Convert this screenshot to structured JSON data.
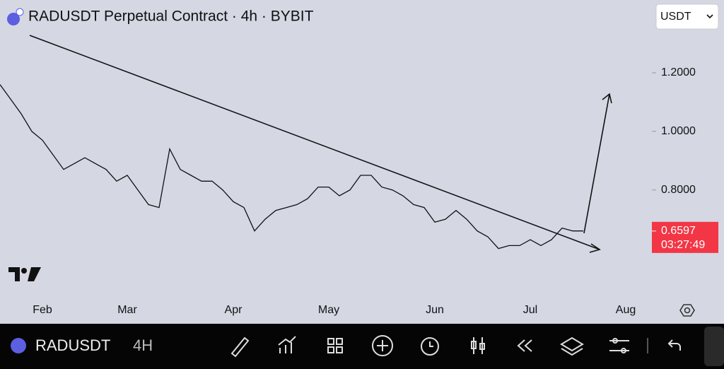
{
  "chart_data": {
    "type": "line",
    "title": "RADUSDT Perpetual Contract · 4h · BYBIT",
    "currency": "USDT",
    "categories": [
      null,
      null,
      null,
      null,
      "Feb",
      null,
      null,
      null,
      null,
      null,
      null,
      null,
      "Mar",
      null,
      null,
      null,
      null,
      null,
      null,
      null,
      null,
      null,
      "Apr",
      null,
      null,
      null,
      null,
      null,
      null,
      null,
      null,
      "May",
      null,
      null,
      null,
      null,
      null,
      null,
      null,
      null,
      null,
      "Jun",
      null,
      null,
      null,
      null,
      null,
      null,
      null,
      null,
      "Jul",
      null,
      null,
      null,
      null,
      null,
      null,
      null,
      null,
      "Aug",
      null
    ],
    "series": [
      {
        "name": "RADUSDT",
        "color": "#111111",
        "values": [
          1.16,
          1.11,
          1.06,
          1.0,
          0.97,
          0.92,
          0.87,
          0.89,
          0.91,
          0.89,
          0.87,
          0.83,
          0.85,
          0.8,
          0.75,
          0.74,
          0.94,
          0.87,
          0.85,
          0.83,
          0.83,
          0.8,
          0.76,
          0.74,
          0.66,
          0.7,
          0.73,
          0.74,
          0.75,
          0.77,
          0.81,
          0.81,
          0.78,
          0.8,
          0.85,
          0.85,
          0.81,
          0.8,
          0.78,
          0.75,
          0.74,
          0.69,
          0.7,
          0.73,
          0.7,
          0.66,
          0.64,
          0.6,
          0.61,
          0.61,
          0.63,
          0.61,
          0.63,
          0.67,
          0.66,
          0.66,
          null,
          null,
          null,
          null,
          null
        ]
      }
    ],
    "ylim": [
      0.43,
      1.34
    ],
    "yticks": [
      {
        "value": 0.8,
        "label": "0.8000"
      },
      {
        "value": 1.0,
        "label": "1.0000"
      },
      {
        "value": 1.2,
        "label": "1.2000"
      }
    ],
    "last_price": 0.6597,
    "countdown": "03:27:49"
  },
  "toolbar": {
    "symbol": "RADUSDT",
    "interval": "4H"
  }
}
